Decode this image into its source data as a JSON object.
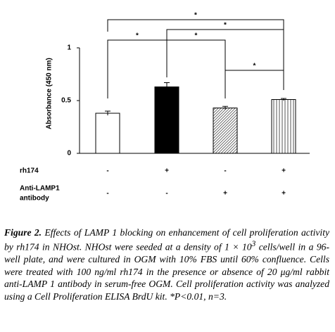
{
  "chart_data": {
    "type": "bar",
    "y_label": "Absorbance (450 nm)",
    "ylim": [
      0,
      1
    ],
    "yticks": [
      0,
      0.5,
      1
    ],
    "values": [
      0.38,
      0.63,
      0.43,
      0.51
    ],
    "errors": [
      0.02,
      0.04,
      0.015,
      0.01
    ],
    "fills": [
      "white",
      "black",
      "diagonal-hatch",
      "vertical-stripes"
    ],
    "color": "#000000",
    "significance": [
      "*",
      "*",
      "*",
      "*",
      "*"
    ],
    "treatments": [
      {
        "label": [
          "rh174"
        ],
        "signs": [
          "-",
          "+",
          "-",
          "+"
        ]
      },
      {
        "label": [
          "Anti-LAMP1",
          "antibody"
        ],
        "signs": [
          "-",
          "-",
          "+",
          "+"
        ]
      }
    ]
  },
  "caption": {
    "label": "Figure 2.",
    "text": [
      " Effects of LAMP 1 blocking on enhancement of cell proliferation activity by rh174 in NHOst. NHOst were seeded at a density of 1 × 10",
      "3",
      " cells/well in a 96-well plate, and were cultured in OGM with 10% FBS until 60% confluence. Cells were treated with 100 ng/ml rh174 in the presence or absence of 20 μg/ml rabbit anti-LAMP 1 antibody in serum-free OGM. Cell proliferation activity was analyzed using a Cell Proliferation ELISA BrdU kit. *P<0.01, n=3."
    ]
  }
}
